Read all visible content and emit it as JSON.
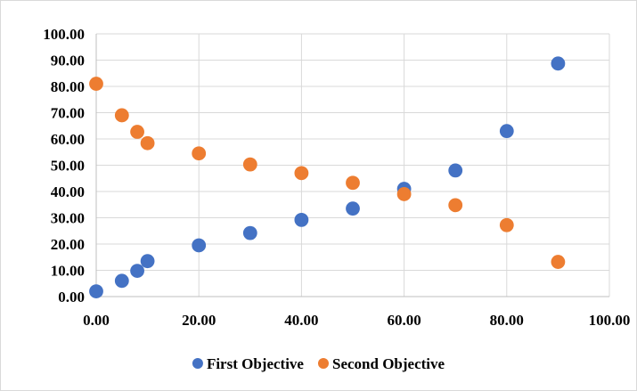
{
  "chart_data": {
    "type": "scatter",
    "title": "",
    "xlabel": "",
    "ylabel": "",
    "xlim": [
      0,
      100
    ],
    "ylim": [
      0,
      100
    ],
    "grid": true,
    "legend_position": "bottom",
    "x_tick_labels": [
      "0.00",
      "20.00",
      "40.00",
      "60.00",
      "80.00",
      "100.00"
    ],
    "y_tick_labels": [
      "0.00",
      "10.00",
      "20.00",
      "30.00",
      "40.00",
      "50.00",
      "60.00",
      "70.00",
      "80.00",
      "90.00",
      "100.00"
    ],
    "series": [
      {
        "name": "First Objective",
        "color": "#4472c4",
        "points": [
          {
            "x": 0,
            "y": 2
          },
          {
            "x": 5,
            "y": 6
          },
          {
            "x": 8,
            "y": 9.8
          },
          {
            "x": 10,
            "y": 13.5
          },
          {
            "x": 20,
            "y": 19.5
          },
          {
            "x": 30,
            "y": 24.2
          },
          {
            "x": 40,
            "y": 29.2
          },
          {
            "x": 50,
            "y": 33.5
          },
          {
            "x": 60,
            "y": 41
          },
          {
            "x": 70,
            "y": 48
          },
          {
            "x": 80,
            "y": 63
          },
          {
            "x": 90,
            "y": 88.7
          }
        ]
      },
      {
        "name": "Second Objective",
        "color": "#ed7d31",
        "points": [
          {
            "x": 0,
            "y": 81
          },
          {
            "x": 5,
            "y": 69
          },
          {
            "x": 8,
            "y": 62.7
          },
          {
            "x": 10,
            "y": 58.4
          },
          {
            "x": 20,
            "y": 54.5
          },
          {
            "x": 30,
            "y": 50.3
          },
          {
            "x": 40,
            "y": 47
          },
          {
            "x": 50,
            "y": 43.3
          },
          {
            "x": 60,
            "y": 39
          },
          {
            "x": 70,
            "y": 34.8
          },
          {
            "x": 80,
            "y": 27.2
          },
          {
            "x": 90,
            "y": 13.2
          }
        ]
      }
    ]
  }
}
